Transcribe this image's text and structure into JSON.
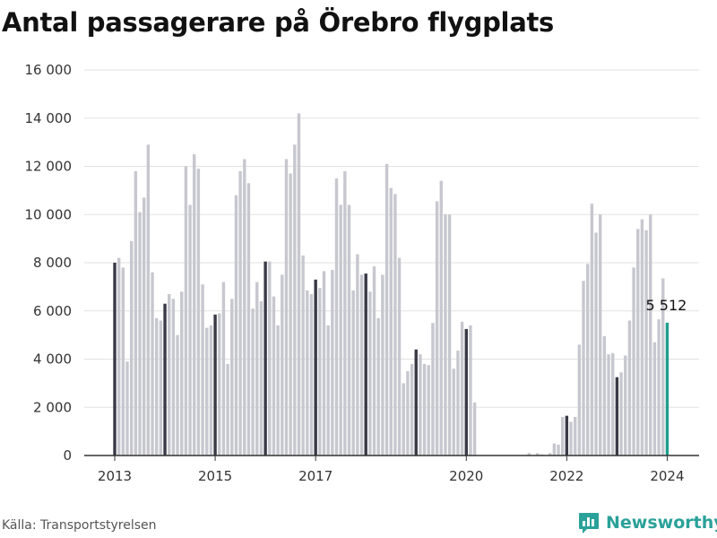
{
  "title": "Antal passagerare på Örebro flygplats",
  "source": "Källa: Transportstyrelsen",
  "brand": {
    "name": "Newsworthy",
    "icon": "newsworthy-logo-icon",
    "color": "#2aa19a"
  },
  "chart_data": {
    "type": "bar",
    "title": "Antal passagerare på Örebro flygplats",
    "xlabel": "",
    "ylabel": "",
    "ylim": [
      0,
      16000
    ],
    "yticks": [
      0,
      2000,
      4000,
      6000,
      8000,
      10000,
      12000,
      14000,
      16000
    ],
    "ytick_labels": [
      "0",
      "2 000",
      "4 000",
      "6 000",
      "8 000",
      "10 000",
      "12 000",
      "14 000",
      "16 000"
    ],
    "xtick_labels": [
      "2013",
      "2015",
      "2017",
      "2020",
      "2022",
      "2024"
    ],
    "xtick_month_index": [
      0,
      24,
      48,
      84,
      108,
      132
    ],
    "grid": true,
    "colors": {
      "bar": "#c7c7cf",
      "highlight": "#3a3a46",
      "last": "#1f9e8e",
      "grid": "#e2e2e2",
      "axis": "#333333"
    },
    "annotation": {
      "label": "5 512",
      "value": 5512
    },
    "start_month": "2013-01",
    "values": [
      8000,
      8200,
      7800,
      3900,
      8900,
      11800,
      10100,
      10700,
      12900,
      7600,
      5700,
      5600,
      6300,
      6700,
      6500,
      5000,
      6800,
      12000,
      10400,
      12500,
      11900,
      7100,
      5300,
      5400,
      5850,
      5900,
      7200,
      3800,
      6500,
      10800,
      11800,
      12300,
      11300,
      6100,
      7200,
      6400,
      8050,
      8050,
      6600,
      5400,
      7500,
      12300,
      11700,
      12900,
      14200,
      8300,
      6850,
      6700,
      7300,
      6950,
      7650,
      5400,
      7700,
      11500,
      10400,
      11800,
      10400,
      6850,
      8350,
      7500,
      7550,
      6800,
      7850,
      5700,
      7500,
      12100,
      11100,
      10850,
      8200,
      3000,
      3500,
      3800,
      4400,
      4200,
      3800,
      3750,
      5500,
      10550,
      11400,
      10000,
      10000,
      3600,
      4350,
      5550,
      5250,
      5400,
      2200,
      0,
      0,
      0,
      0,
      0,
      0,
      0,
      0,
      0,
      0,
      0,
      0,
      100,
      0,
      100,
      50,
      0,
      100,
      500,
      450,
      1600,
      1650,
      1400,
      1600,
      4600,
      7250,
      7950,
      10450,
      9250,
      10000,
      4950,
      4200,
      4250,
      3250,
      3450,
      4150,
      5600,
      7800,
      9400,
      9800,
      9350,
      10000,
      4700,
      5650,
      7350,
      5512
    ]
  }
}
